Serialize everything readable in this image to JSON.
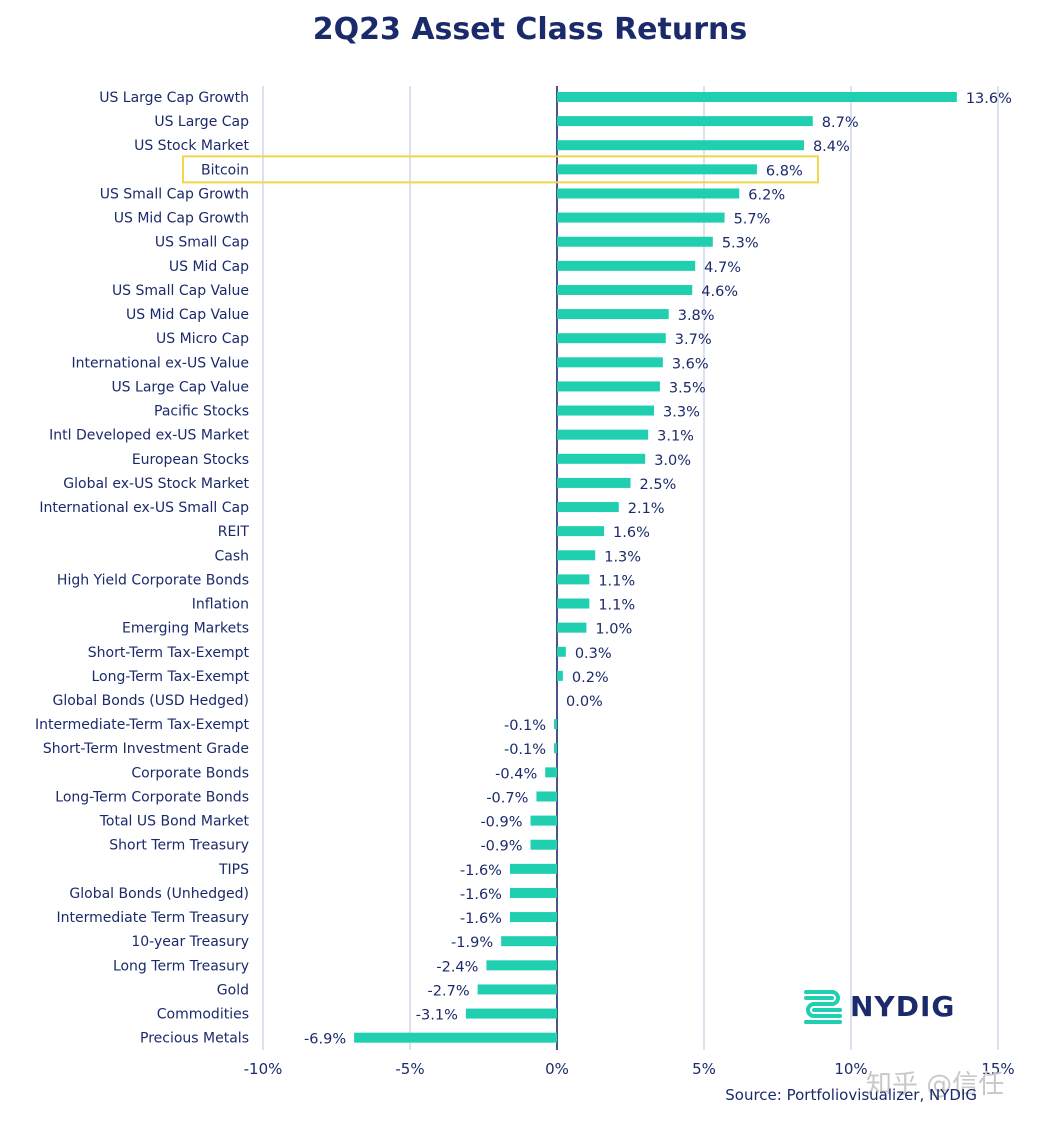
{
  "title": "2Q23 Asset Class Returns",
  "source": "Source: Portfoliovisualizer, NYDIG",
  "logo_text": "NYDIG",
  "watermark": "知乎 @信任",
  "colors": {
    "bar": "#1fcfb0",
    "text": "#1b2a6b",
    "grid": "#b9c3e6",
    "highlight": "#f2d64b"
  },
  "chart_data": {
    "type": "bar",
    "orientation": "horizontal",
    "title": "2Q23 Asset Class Returns",
    "xlim": [
      -10,
      15
    ],
    "xticks": [
      -10,
      -5,
      0,
      5,
      10,
      15
    ],
    "xtick_labels": [
      "-10%",
      "-5%",
      "0%",
      "5%",
      "10%",
      "15%"
    ],
    "grid": true,
    "highlighted_category": "Bitcoin",
    "categories": [
      "US Large Cap Growth",
      "US Large Cap",
      "US Stock Market",
      "Bitcoin",
      "US Small Cap Growth",
      "US Mid Cap Growth",
      "US Small Cap",
      "US Mid Cap",
      "US Small Cap Value",
      "US Mid Cap Value",
      "US Micro Cap",
      "International ex-US Value",
      "US Large Cap Value",
      "Pacific Stocks",
      "Intl Developed ex-US Market",
      "European Stocks",
      "Global ex-US Stock Market",
      "International ex-US Small Cap",
      "REIT",
      "Cash",
      "High Yield Corporate Bonds",
      "Inflation",
      "Emerging Markets",
      "Short-Term Tax-Exempt",
      "Long-Term Tax-Exempt",
      "Global Bonds (USD Hedged)",
      "Intermediate-Term Tax-Exempt",
      "Short-Term Investment Grade",
      "Corporate Bonds",
      "Long-Term Corporate Bonds",
      "Total US Bond Market",
      "Short Term Treasury",
      "TIPS",
      "Global Bonds (Unhedged)",
      "Intermediate Term Treasury",
      "10-year Treasury",
      "Long Term Treasury",
      "Gold",
      "Commodities",
      "Precious Metals"
    ],
    "values": [
      13.6,
      8.7,
      8.4,
      6.8,
      6.2,
      5.7,
      5.3,
      4.7,
      4.6,
      3.8,
      3.7,
      3.6,
      3.5,
      3.3,
      3.1,
      3.0,
      2.5,
      2.1,
      1.6,
      1.3,
      1.1,
      1.1,
      1.0,
      0.3,
      0.2,
      0.0,
      -0.1,
      -0.1,
      -0.4,
      -0.7,
      -0.9,
      -0.9,
      -1.6,
      -1.6,
      -1.6,
      -1.9,
      -2.4,
      -2.7,
      -3.1,
      -6.9
    ],
    "value_labels": [
      "13.6%",
      "8.7%",
      "8.4%",
      "6.8%",
      "6.2%",
      "5.7%",
      "5.3%",
      "4.7%",
      "4.6%",
      "3.8%",
      "3.7%",
      "3.6%",
      "3.5%",
      "3.3%",
      "3.1%",
      "3.0%",
      "2.5%",
      "2.1%",
      "1.6%",
      "1.3%",
      "1.1%",
      "1.1%",
      "1.0%",
      "0.3%",
      "0.2%",
      "0.0%",
      "-0.1%",
      "-0.1%",
      "-0.4%",
      "-0.7%",
      "-0.9%",
      "-0.9%",
      "-1.6%",
      "-1.6%",
      "-1.6%",
      "-1.9%",
      "-2.4%",
      "-2.7%",
      "-3.1%",
      "-6.9%"
    ]
  }
}
